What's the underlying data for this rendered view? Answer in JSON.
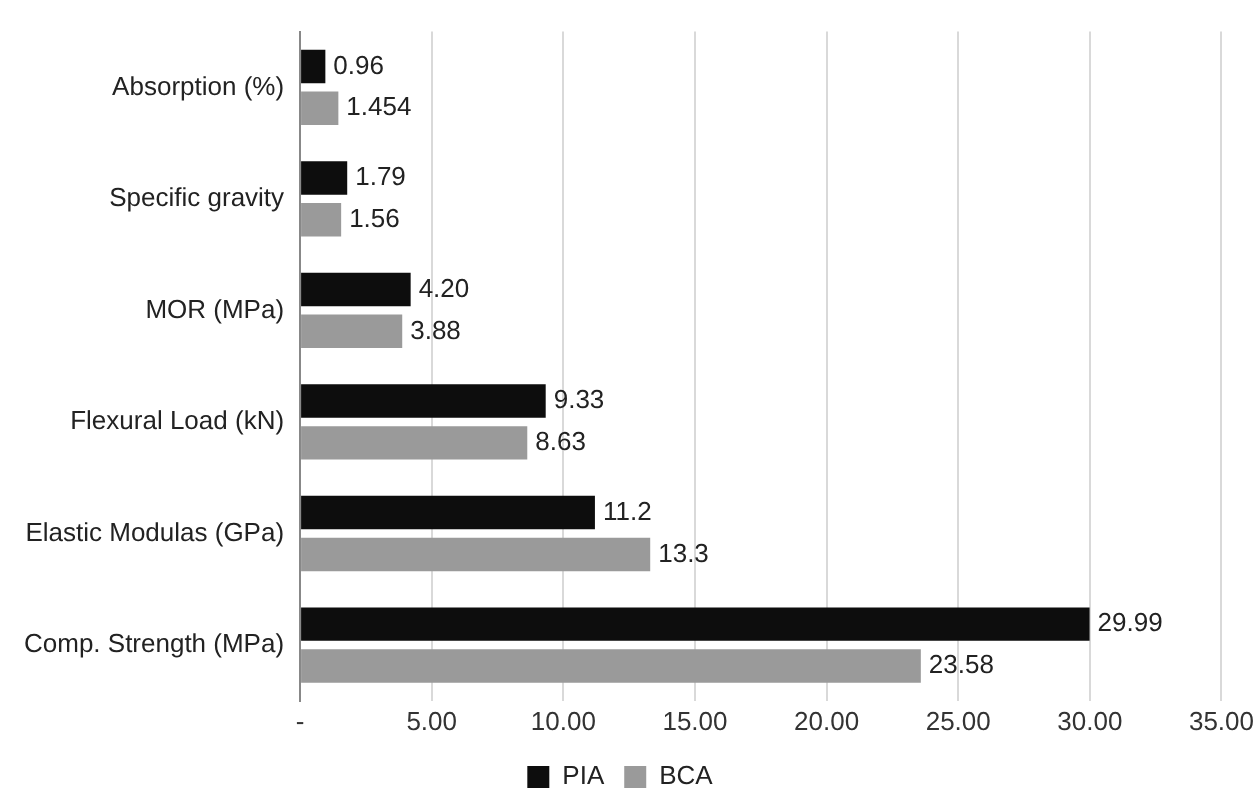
{
  "chart_data": {
    "type": "bar",
    "orientation": "horizontal",
    "categories": [
      "Absorption (%)",
      "Specific gravity",
      "MOR (MPa)",
      "Flexural Load (kN)",
      "Elastic Modulas (GPa)",
      "Comp. Strength (MPa)"
    ],
    "series": [
      {
        "name": "PIA",
        "color": "#0d0d0d",
        "values": [
          0.96,
          1.79,
          4.2,
          9.33,
          11.2,
          29.99
        ],
        "value_labels": [
          "0.96",
          "1.79",
          "4.20",
          "9.33",
          "11.2",
          "29.99"
        ]
      },
      {
        "name": "BCA",
        "color": "#9a9a9a",
        "values": [
          1.454,
          1.56,
          3.88,
          8.63,
          13.3,
          23.58
        ],
        "value_labels": [
          "1.454",
          "1.56",
          "3.88",
          "8.63",
          "13.3",
          "23.58"
        ]
      }
    ],
    "xlim": [
      0,
      35
    ],
    "xticks": [
      {
        "value": 0,
        "label": "-"
      },
      {
        "value": 5,
        "label": "5.00"
      },
      {
        "value": 10,
        "label": "10.00"
      },
      {
        "value": 15,
        "label": "15.00"
      },
      {
        "value": 20,
        "label": "20.00"
      },
      {
        "value": 25,
        "label": "25.00"
      },
      {
        "value": 30,
        "label": "30.00"
      },
      {
        "value": 35,
        "label": "35.00"
      }
    ],
    "grid": "x",
    "legend": "bottom"
  }
}
